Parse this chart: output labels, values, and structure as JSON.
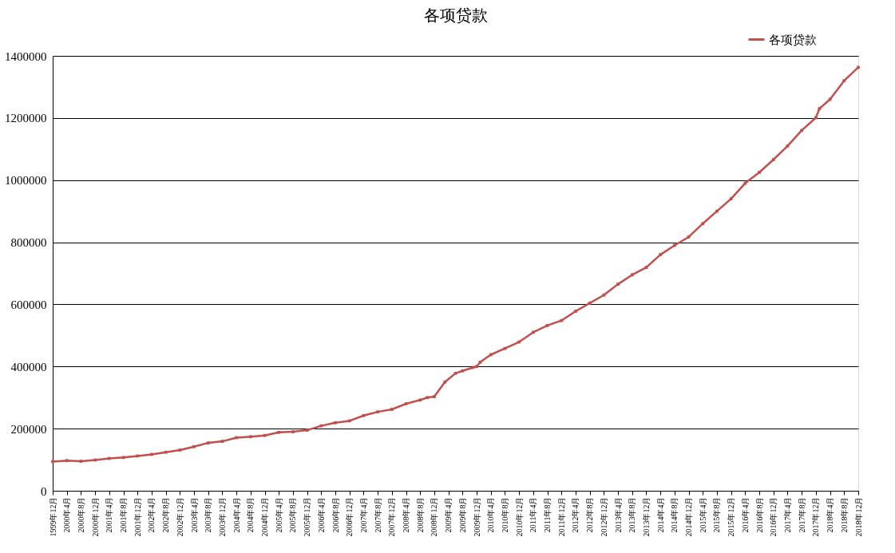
{
  "chart_data": {
    "type": "line",
    "title": "各项贷款",
    "legend": "top right",
    "grid": "y",
    "marker": "square",
    "line_style": "solid",
    "ylim": [
      0,
      1400000
    ],
    "yticks": [
      0,
      200000,
      400000,
      600000,
      800000,
      1000000,
      1200000,
      1400000
    ],
    "xlim": [
      "1999-12",
      "2018-12"
    ],
    "xticks": [
      {
        "value": "1999-12",
        "label": "1999年12月"
      },
      {
        "value": "2000-04",
        "label": "2000年4月"
      },
      {
        "value": "2000-08",
        "label": "2000年8月"
      },
      {
        "value": "2000-12",
        "label": "2000年12月"
      },
      {
        "value": "2001-04",
        "label": "2001年4月"
      },
      {
        "value": "2001-08",
        "label": "2001年8月"
      },
      {
        "value": "2001-12",
        "label": "2001年12月"
      },
      {
        "value": "2002-04",
        "label": "2002年4月"
      },
      {
        "value": "2002-08",
        "label": "2002年8月"
      },
      {
        "value": "2002-12",
        "label": "2002年12月"
      },
      {
        "value": "2003-04",
        "label": "2003年4月"
      },
      {
        "value": "2003-08",
        "label": "2003年8月"
      },
      {
        "value": "2003-12",
        "label": "2003年12月"
      },
      {
        "value": "2004-04",
        "label": "2004年4月"
      },
      {
        "value": "2004-08",
        "label": "2004年8月"
      },
      {
        "value": "2004-12",
        "label": "2004年12月"
      },
      {
        "value": "2005-04",
        "label": "2005年4月"
      },
      {
        "value": "2005-08",
        "label": "2005年8月"
      },
      {
        "value": "2005-12",
        "label": "2005年12月"
      },
      {
        "value": "2006-04",
        "label": "2006年4月"
      },
      {
        "value": "2006-08",
        "label": "2006年8月"
      },
      {
        "value": "2006-12",
        "label": "2006年12月"
      },
      {
        "value": "2007-04",
        "label": "2007年4月"
      },
      {
        "value": "2007-08",
        "label": "2007年8月"
      },
      {
        "value": "2007-12",
        "label": "2007年12月"
      },
      {
        "value": "2008-04",
        "label": "2008年4月"
      },
      {
        "value": "2008-08",
        "label": "2008年8月"
      },
      {
        "value": "2008-12",
        "label": "2008年12月"
      },
      {
        "value": "2009-04",
        "label": "2009年4月"
      },
      {
        "value": "2009-08",
        "label": "2009年8月"
      },
      {
        "value": "2009-12",
        "label": "2009年12月"
      },
      {
        "value": "2010-04",
        "label": "2010年4月"
      },
      {
        "value": "2010-08",
        "label": "2010年8月"
      },
      {
        "value": "2010-12",
        "label": "2010年12月"
      },
      {
        "value": "2011-04",
        "label": "2011年4月"
      },
      {
        "value": "2011-08",
        "label": "2011年8月"
      },
      {
        "value": "2011-12",
        "label": "2011年12月"
      },
      {
        "value": "2012-04",
        "label": "2012年4月"
      },
      {
        "value": "2012-08",
        "label": "2012年8月"
      },
      {
        "value": "2012-12",
        "label": "2012年12月"
      },
      {
        "value": "2013-04",
        "label": "2013年4月"
      },
      {
        "value": "2013-08",
        "label": "2013年8月"
      },
      {
        "value": "2013-12",
        "label": "2013年12月"
      },
      {
        "value": "2014-04",
        "label": "2014年4月"
      },
      {
        "value": "2014-08",
        "label": "2014年8月"
      },
      {
        "value": "2014-12",
        "label": "2014年12月"
      },
      {
        "value": "2015-04",
        "label": "2015年4月"
      },
      {
        "value": "2015-08",
        "label": "2015年8月"
      },
      {
        "value": "2015-12",
        "label": "2015年12月"
      },
      {
        "value": "2016-04",
        "label": "2016年4月"
      },
      {
        "value": "2016-08",
        "label": "2016年8月"
      },
      {
        "value": "2016-12",
        "label": "2016年12月"
      },
      {
        "value": "2017-04",
        "label": "2017年4月"
      },
      {
        "value": "2017-08",
        "label": "2017年8月"
      },
      {
        "value": "2017-12",
        "label": "2017年12月"
      },
      {
        "value": "2018-04",
        "label": "2018年4月"
      },
      {
        "value": "2018-08",
        "label": "2018年8月"
      },
      {
        "value": "2018-12",
        "label": "2018年12月"
      }
    ],
    "x": [
      "1999-12",
      "2000-04",
      "2000-08",
      "2000-12",
      "2001-04",
      "2001-08",
      "2001-12",
      "2002-04",
      "2002-08",
      "2002-12",
      "2003-04",
      "2003-08",
      "2003-12",
      "2004-04",
      "2004-08",
      "2004-12",
      "2005-04",
      "2005-08",
      "2005-12",
      "2006-04",
      "2006-08",
      "2006-12",
      "2007-04",
      "2007-08",
      "2007-12",
      "2008-04",
      "2008-08",
      "2008-10",
      "2008-12",
      "2009-03",
      "2009-06",
      "2009-08",
      "2009-11",
      "2009-12",
      "2010-01",
      "2010-04",
      "2010-08",
      "2010-12",
      "2011-04",
      "2011-08",
      "2011-12",
      "2012-04",
      "2012-08",
      "2012-12",
      "2013-04",
      "2013-08",
      "2013-12",
      "2014-04",
      "2014-08",
      "2014-12",
      "2015-04",
      "2015-08",
      "2015-12",
      "2016-04",
      "2016-08",
      "2016-12",
      "2017-04",
      "2017-08",
      "2017-12",
      "2018-01",
      "2018-04",
      "2018-08",
      "2018-12"
    ],
    "series": [
      {
        "name": "各项贷款",
        "color": "#c0504d",
        "values": [
          94000,
          97000,
          95000,
          99000,
          104000,
          107000,
          112000,
          117000,
          124000,
          131000,
          142000,
          154000,
          159000,
          171000,
          174000,
          178000,
          188000,
          190000,
          195000,
          209000,
          219000,
          225000,
          242000,
          254000,
          262000,
          280000,
          292000,
          300000,
          303000,
          350000,
          378000,
          386000,
          397000,
          400000,
          414000,
          438000,
          458000,
          479000,
          510000,
          532000,
          548000,
          578000,
          604000,
          630000,
          665000,
          695000,
          719000,
          760000,
          790000,
          817000,
          860000,
          900000,
          940000,
          990000,
          1025000,
          1066000,
          1110000,
          1160000,
          1201000,
          1230000,
          1260000,
          1320000,
          1363000
        ]
      }
    ]
  }
}
